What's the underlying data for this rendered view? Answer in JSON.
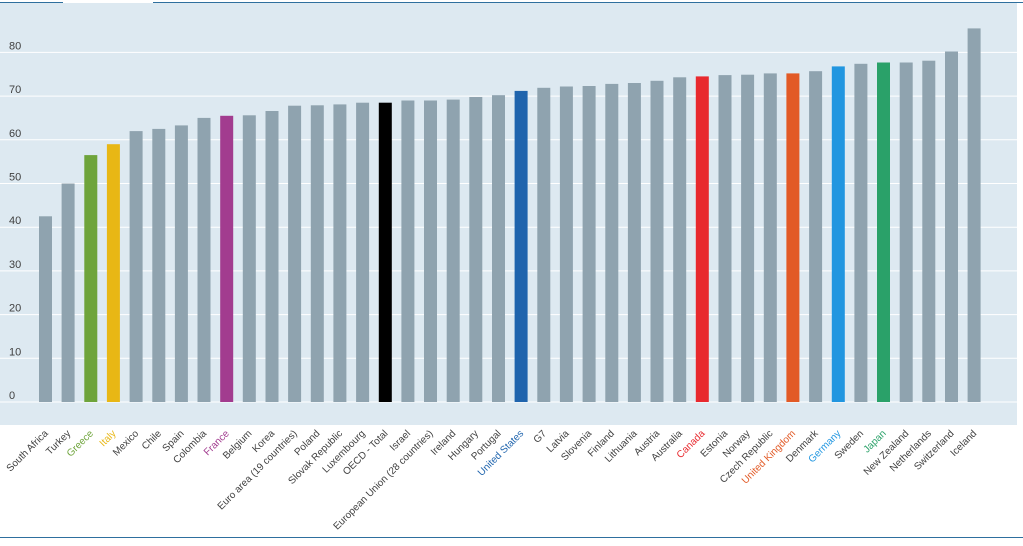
{
  "chart_data": {
    "type": "bar",
    "title": "",
    "xlabel": "",
    "ylabel": "",
    "ylim": [
      0,
      90
    ],
    "yticks": [
      0,
      10,
      20,
      30,
      40,
      50,
      60,
      70,
      80
    ],
    "grid": true,
    "categories": [
      "South Africa",
      "Turkey",
      "Greece",
      "Italy",
      "Mexico",
      "Chile",
      "Spain",
      "Colombia",
      "France",
      "Belgium",
      "Korea",
      "Euro area (19 countries)",
      "Poland",
      "Slovak Republic",
      "Luxembourg",
      "OECD - Total",
      "Israel",
      "European Union (28 countries)",
      "Ireland",
      "Hungary",
      "Portugal",
      "United States",
      "G7",
      "Latvia",
      "Slovenia",
      "Finland",
      "Lithuania",
      "Austria",
      "Australia",
      "Canada",
      "Estonia",
      "Norway",
      "Czech Republic",
      "United Kingdom",
      "Denmark",
      "Germany",
      "Sweden",
      "Japan",
      "New Zealand",
      "Netherlands",
      "Switzerland",
      "Iceland"
    ],
    "values": [
      42.5,
      50,
      56.5,
      59,
      62,
      62.5,
      63.3,
      65,
      65.5,
      65.6,
      66.6,
      67.8,
      67.9,
      68.1,
      68.5,
      68.5,
      69,
      69,
      69.2,
      69.8,
      70.2,
      71.2,
      71.9,
      72.2,
      72.3,
      72.8,
      73,
      73.5,
      74.3,
      74.5,
      74.8,
      74.9,
      75.2,
      75.2,
      75.7,
      76.8,
      77.4,
      77.7,
      77.7,
      78.1,
      80.2,
      85.5
    ],
    "colors": {
      "default_bar": "#8fa3af",
      "plot_background": "#dde9f1",
      "gridline": "#ffffff",
      "label_default": "#404040",
      "highlights": {
        "Greece": "#6ea43b",
        "Italy": "#e8b715",
        "France": "#a23c8f",
        "OECD - Total": "#000000",
        "United States": "#1f64ad",
        "Canada": "#e8292e",
        "United Kingdom": "#e25a26",
        "Germany": "#2196e0",
        "Japan": "#2aa169"
      }
    }
  }
}
